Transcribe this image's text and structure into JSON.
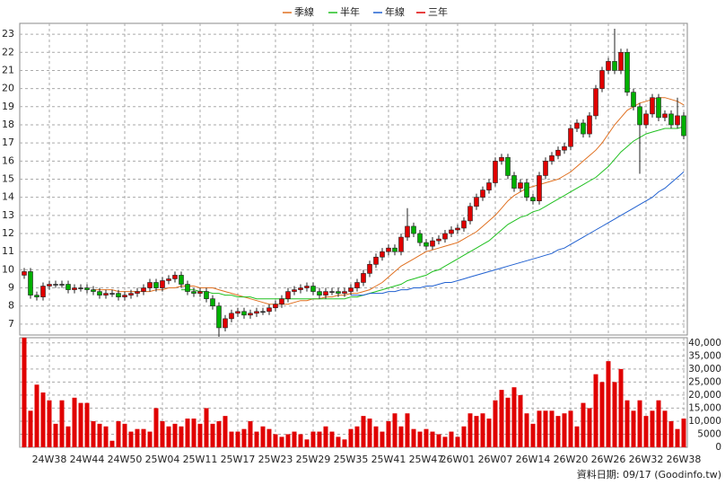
{
  "chart_data": {
    "type": "candlestick",
    "footer": "資料日期: 09/17 (Goodinfo.tw)",
    "up_color": "#e00000",
    "down_color": "#00b000",
    "grid": true,
    "categories": [
      null,
      null,
      null,
      null,
      "24W38",
      null,
      null,
      null,
      null,
      null,
      "24W44",
      null,
      null,
      null,
      null,
      null,
      "24W50",
      null,
      null,
      null,
      null,
      null,
      "25W04",
      null,
      null,
      null,
      null,
      null,
      "25W11",
      null,
      null,
      null,
      null,
      null,
      "25W17",
      null,
      null,
      null,
      null,
      null,
      "25W23",
      null,
      null,
      null,
      null,
      null,
      "25W29",
      null,
      null,
      null,
      null,
      null,
      "25W35",
      null,
      null,
      null,
      null,
      null,
      "25W41",
      null,
      null,
      null,
      null,
      null,
      "25W47",
      null,
      null,
      null,
      null,
      "26W01",
      null,
      null,
      null,
      null,
      null,
      "26W07",
      null,
      null,
      null,
      null,
      null,
      "26W14",
      null,
      null,
      null,
      null,
      null,
      "26W20",
      null,
      null,
      null,
      null,
      null,
      "26W26",
      null,
      null,
      null,
      null,
      null,
      "26W32",
      null,
      null,
      null,
      null,
      null,
      "26W38"
    ],
    "open": [
      9.7,
      9.9,
      8.6,
      8.5,
      9.1,
      9.2,
      9.2,
      9.2,
      8.9,
      9.0,
      9.0,
      8.9,
      8.8,
      8.6,
      8.7,
      8.7,
      8.5,
      8.6,
      8.7,
      8.8,
      9.0,
      9.3,
      9.0,
      9.4,
      9.5,
      9.7,
      9.2,
      8.8,
      8.7,
      8.8,
      8.4,
      8.0,
      6.8,
      7.3,
      7.6,
      7.7,
      7.5,
      7.6,
      7.7,
      7.7,
      7.9,
      8.1,
      8.4,
      8.8,
      8.9,
      9.0,
      9.1,
      8.8,
      8.6,
      8.8,
      8.8,
      8.7,
      8.8,
      9.0,
      9.3,
      9.8,
      10.3,
      10.7,
      11.0,
      11.2,
      11.0,
      11.8,
      12.4,
      12.0,
      11.5,
      11.3,
      11.6,
      11.7,
      12.0,
      12.2,
      12.3,
      12.7,
      13.5,
      14.0,
      14.4,
      14.8,
      16.0,
      16.2,
      15.2,
      14.5,
      14.8,
      14.0,
      13.8,
      15.2,
      16.0,
      16.3,
      16.6,
      16.8,
      17.8,
      18.1,
      17.5,
      18.5,
      20.0,
      21.0,
      21.5,
      21.0,
      22.0,
      19.8,
      19.0,
      18.0,
      18.6,
      19.5,
      18.4,
      18.6,
      18.0,
      18.5
    ],
    "high": [
      10.1,
      10.1,
      8.8,
      9.3,
      9.4,
      9.4,
      9.4,
      9.4,
      9.2,
      9.2,
      9.2,
      9.1,
      9.0,
      8.9,
      8.9,
      8.9,
      8.8,
      8.9,
      9.0,
      9.2,
      9.5,
      9.5,
      9.6,
      9.7,
      9.9,
      9.9,
      9.4,
      9.0,
      9.0,
      9.0,
      8.6,
      8.2,
      7.5,
      7.8,
      7.9,
      7.9,
      7.8,
      7.9,
      7.9,
      8.1,
      8.3,
      8.6,
      9.0,
      9.1,
      9.2,
      9.3,
      9.3,
      9.0,
      9.0,
      9.0,
      9.0,
      9.0,
      9.2,
      9.5,
      10.0,
      10.5,
      10.9,
      11.2,
      11.4,
      11.4,
      12.0,
      13.4,
      12.6,
      12.2,
      11.7,
      11.8,
      11.9,
      12.2,
      12.4,
      12.5,
      12.9,
      13.7,
      14.2,
      14.6,
      15.0,
      16.2,
      16.4,
      16.4,
      15.4,
      15.0,
      15.0,
      14.2,
      15.4,
      16.2,
      16.5,
      16.8,
      17.0,
      18.0,
      18.3,
      18.3,
      18.7,
      20.2,
      21.2,
      21.7,
      23.3,
      22.2,
      22.2,
      20.0,
      19.2,
      18.8,
      19.7,
      19.7,
      18.8,
      18.8,
      19.5,
      18.7
    ],
    "low": [
      9.5,
      8.4,
      8.3,
      8.3,
      8.9,
      9.0,
      9.0,
      8.7,
      8.7,
      8.8,
      8.7,
      8.6,
      8.4,
      8.4,
      8.5,
      8.3,
      8.3,
      8.4,
      8.5,
      8.6,
      8.8,
      8.8,
      8.8,
      9.2,
      9.3,
      9.0,
      8.6,
      8.5,
      8.5,
      8.2,
      7.8,
      6.3,
      6.6,
      7.1,
      7.4,
      7.3,
      7.3,
      7.4,
      7.5,
      7.5,
      7.7,
      7.9,
      8.2,
      8.6,
      8.7,
      8.8,
      8.6,
      8.4,
      8.4,
      8.6,
      8.5,
      8.5,
      8.6,
      8.8,
      9.1,
      9.6,
      10.1,
      10.5,
      10.8,
      10.8,
      10.8,
      11.6,
      11.8,
      11.3,
      11.1,
      11.1,
      11.4,
      11.5,
      11.8,
      12.0,
      12.1,
      12.5,
      13.3,
      13.8,
      14.2,
      14.6,
      15.8,
      15.0,
      14.3,
      14.3,
      13.8,
      13.6,
      13.6,
      15.0,
      15.8,
      16.1,
      16.4,
      16.6,
      17.6,
      17.3,
      17.3,
      18.3,
      19.8,
      20.8,
      20.8,
      20.8,
      19.6,
      18.8,
      15.3,
      17.8,
      18.4,
      18.2,
      18.2,
      17.8,
      17.8,
      17.2
    ],
    "close": [
      9.9,
      8.6,
      8.5,
      9.1,
      9.2,
      9.2,
      9.2,
      8.9,
      9.0,
      9.0,
      8.9,
      8.8,
      8.6,
      8.7,
      8.7,
      8.5,
      8.6,
      8.7,
      8.8,
      9.0,
      9.3,
      9.0,
      9.4,
      9.5,
      9.7,
      9.2,
      8.8,
      8.7,
      8.8,
      8.4,
      8.0,
      6.8,
      7.3,
      7.6,
      7.7,
      7.5,
      7.6,
      7.7,
      7.7,
      7.9,
      8.1,
      8.4,
      8.8,
      8.9,
      9.0,
      9.1,
      8.8,
      8.6,
      8.8,
      8.8,
      8.7,
      8.8,
      9.0,
      9.3,
      9.8,
      10.3,
      10.7,
      11.0,
      11.2,
      11.0,
      11.8,
      12.4,
      12.0,
      11.5,
      11.3,
      11.6,
      11.7,
      12.0,
      12.2,
      12.3,
      12.7,
      13.5,
      14.0,
      14.4,
      14.8,
      16.0,
      16.2,
      15.2,
      14.5,
      14.8,
      14.0,
      13.8,
      15.2,
      16.0,
      16.3,
      16.6,
      16.8,
      17.8,
      18.1,
      17.5,
      18.5,
      20.0,
      21.0,
      21.5,
      21.0,
      22.0,
      19.8,
      19.0,
      18.0,
      18.6,
      19.5,
      18.4,
      18.6,
      18.0,
      18.5,
      17.4
    ],
    "series": [
      {
        "name": "季線",
        "color": "#e07020",
        "values": [
          null,
          null,
          null,
          null,
          null,
          null,
          null,
          null,
          null,
          null,
          null,
          8.9,
          8.9,
          8.9,
          8.9,
          8.8,
          8.8,
          8.8,
          8.8,
          8.8,
          8.8,
          8.9,
          8.9,
          9.0,
          9.0,
          9.1,
          9.1,
          9.1,
          9.0,
          9.0,
          9.0,
          8.9,
          8.8,
          8.7,
          8.6,
          8.5,
          8.4,
          8.3,
          8.2,
          8.1,
          8.1,
          8.1,
          8.1,
          8.2,
          8.3,
          8.3,
          8.4,
          8.4,
          8.5,
          8.5,
          8.6,
          8.6,
          8.7,
          8.7,
          8.8,
          8.9,
          9.1,
          9.3,
          9.6,
          9.9,
          10.2,
          10.4,
          10.6,
          10.8,
          11.0,
          11.1,
          11.2,
          11.3,
          11.4,
          11.5,
          11.7,
          11.9,
          12.1,
          12.4,
          12.7,
          13.0,
          13.4,
          13.8,
          14.1,
          14.3,
          14.5,
          14.6,
          14.7,
          14.8,
          14.9,
          15.0,
          15.2,
          15.4,
          15.7,
          16.0,
          16.3,
          16.6,
          17.0,
          17.5,
          18.0,
          18.4,
          18.8,
          19.0,
          19.2,
          19.3,
          19.4,
          19.5,
          19.5,
          19.4,
          19.3,
          19.1
        ]
      },
      {
        "name": "半年",
        "color": "#20c020",
        "values": [
          null,
          null,
          null,
          null,
          null,
          null,
          null,
          null,
          null,
          null,
          null,
          null,
          null,
          null,
          null,
          null,
          null,
          null,
          null,
          null,
          null,
          null,
          null,
          null,
          null,
          8.9,
          8.9,
          8.9,
          8.8,
          8.8,
          8.7,
          8.7,
          8.6,
          8.6,
          8.5,
          8.5,
          8.5,
          8.4,
          8.4,
          8.4,
          8.4,
          8.4,
          8.4,
          8.4,
          8.4,
          8.4,
          8.4,
          8.4,
          8.4,
          8.4,
          8.4,
          8.4,
          8.5,
          8.5,
          8.6,
          8.7,
          8.8,
          8.9,
          9.0,
          9.1,
          9.2,
          9.4,
          9.5,
          9.6,
          9.7,
          9.9,
          10.0,
          10.2,
          10.4,
          10.6,
          10.8,
          11.0,
          11.2,
          11.4,
          11.6,
          11.9,
          12.2,
          12.5,
          12.7,
          12.9,
          13.0,
          13.2,
          13.3,
          13.5,
          13.7,
          13.9,
          14.1,
          14.3,
          14.5,
          14.7,
          14.9,
          15.1,
          15.4,
          15.7,
          16.1,
          16.5,
          16.8,
          17.1,
          17.3,
          17.5,
          17.6,
          17.7,
          17.8,
          17.8,
          17.8,
          17.9
        ]
      },
      {
        "name": "年線",
        "color": "#2060d0",
        "values": [
          null,
          null,
          null,
          null,
          null,
          null,
          null,
          null,
          null,
          null,
          null,
          null,
          null,
          null,
          null,
          null,
          null,
          null,
          null,
          null,
          null,
          null,
          null,
          null,
          null,
          null,
          null,
          null,
          null,
          null,
          null,
          null,
          null,
          null,
          null,
          null,
          null,
          null,
          null,
          null,
          null,
          null,
          null,
          null,
          null,
          null,
          null,
          null,
          null,
          null,
          null,
          null,
          8.6,
          8.6,
          8.6,
          8.7,
          8.7,
          8.7,
          8.8,
          8.8,
          8.9,
          8.9,
          9.0,
          9.0,
          9.1,
          9.1,
          9.2,
          9.3,
          9.3,
          9.4,
          9.5,
          9.6,
          9.7,
          9.8,
          9.9,
          10.0,
          10.1,
          10.2,
          10.3,
          10.4,
          10.5,
          10.6,
          10.7,
          10.8,
          10.9,
          11.1,
          11.2,
          11.4,
          11.6,
          11.8,
          12.0,
          12.2,
          12.4,
          12.6,
          12.8,
          13.0,
          13.2,
          13.4,
          13.6,
          13.8,
          14.0,
          14.3,
          14.5,
          14.8,
          15.1,
          15.4
        ]
      },
      {
        "name": "三年",
        "color": "#e00000"
      }
    ],
    "ylim": [
      6.4,
      23.6
    ],
    "yticks": [
      7,
      8,
      9,
      10,
      11,
      12,
      13,
      14,
      15,
      16,
      17,
      18,
      19,
      20,
      21,
      22,
      23
    ],
    "volume": {
      "color": "#e00000",
      "values": [
        42000,
        14000,
        24000,
        21000,
        18000,
        9000,
        18000,
        8000,
        19000,
        17000,
        17000,
        10000,
        9000,
        8000,
        2500,
        10000,
        9000,
        6000,
        7000,
        7000,
        6000,
        15000,
        10000,
        8000,
        9000,
        8000,
        11000,
        11000,
        9000,
        15000,
        9000,
        10000,
        12000,
        6000,
        6000,
        7000,
        10000,
        6000,
        8000,
        7000,
        5000,
        4000,
        5000,
        6000,
        5000,
        3000,
        6000,
        6000,
        8000,
        6000,
        4000,
        3000,
        7000,
        8000,
        12000,
        11000,
        8000,
        6000,
        10000,
        13000,
        8000,
        13000,
        7000,
        6000,
        7000,
        6000,
        5000,
        4000,
        6000,
        4000,
        8000,
        13000,
        12000,
        13000,
        11000,
        18000,
        22000,
        19000,
        23000,
        20000,
        13000,
        9000,
        14000,
        14000,
        14000,
        12000,
        13000,
        14000,
        8000,
        17000,
        15000,
        28000,
        25000,
        33000,
        25000,
        30000,
        18000,
        14000,
        18000,
        12000,
        14000,
        18000,
        14000,
        10000,
        7000,
        11000
      ]
    },
    "y2lim": [
      0,
      42000
    ],
    "y2ticks": [
      0,
      5000,
      {
        "value": 10000,
        "label": "10,000"
      },
      {
        "value": 15000,
        "label": "15,000"
      },
      {
        "value": 20000,
        "label": "20,000"
      },
      {
        "value": 25000,
        "label": "25,000"
      },
      {
        "value": 30000,
        "label": "30,000"
      },
      {
        "value": 35000,
        "label": "35,000"
      },
      {
        "value": 40000,
        "label": "40,000"
      }
    ]
  }
}
